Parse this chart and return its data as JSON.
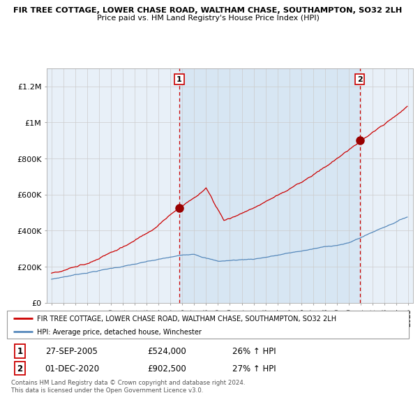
{
  "title": "FIR TREE COTTAGE, LOWER CHASE ROAD, WALTHAM CHASE, SOUTHAMPTON, SO32 2LH",
  "subtitle": "Price paid vs. HM Land Registry's House Price Index (HPI)",
  "ylabel_ticks": [
    "£0",
    "£200K",
    "£400K",
    "£600K",
    "£800K",
    "£1M",
    "£1.2M"
  ],
  "ytick_values": [
    0,
    200000,
    400000,
    600000,
    800000,
    1000000,
    1200000
  ],
  "ylim": [
    0,
    1300000
  ],
  "xlim_left": 1994.6,
  "xlim_right": 2025.4,
  "sale1_year": 2005.75,
  "sale1_price": 524000,
  "sale1_date": "27-SEP-2005",
  "sale1_pct": "26%",
  "sale2_year": 2020.917,
  "sale2_price": 902500,
  "sale2_date": "01-DEC-2020",
  "sale2_pct": "27%",
  "legend_label1": "FIR TREE COTTAGE, LOWER CHASE ROAD, WALTHAM CHASE, SOUTHAMPTON, SO32 2LH",
  "legend_label2": "HPI: Average price, detached house, Winchester",
  "footer": "Contains HM Land Registry data © Crown copyright and database right 2024.\nThis data is licensed under the Open Government Licence v3.0.",
  "line_color_red": "#cc0000",
  "line_color_blue": "#5588bb",
  "fill_color": "#ddeeff",
  "background_color": "#ffffff",
  "grid_color": "#cccccc",
  "shade_color": "#ddeeff"
}
